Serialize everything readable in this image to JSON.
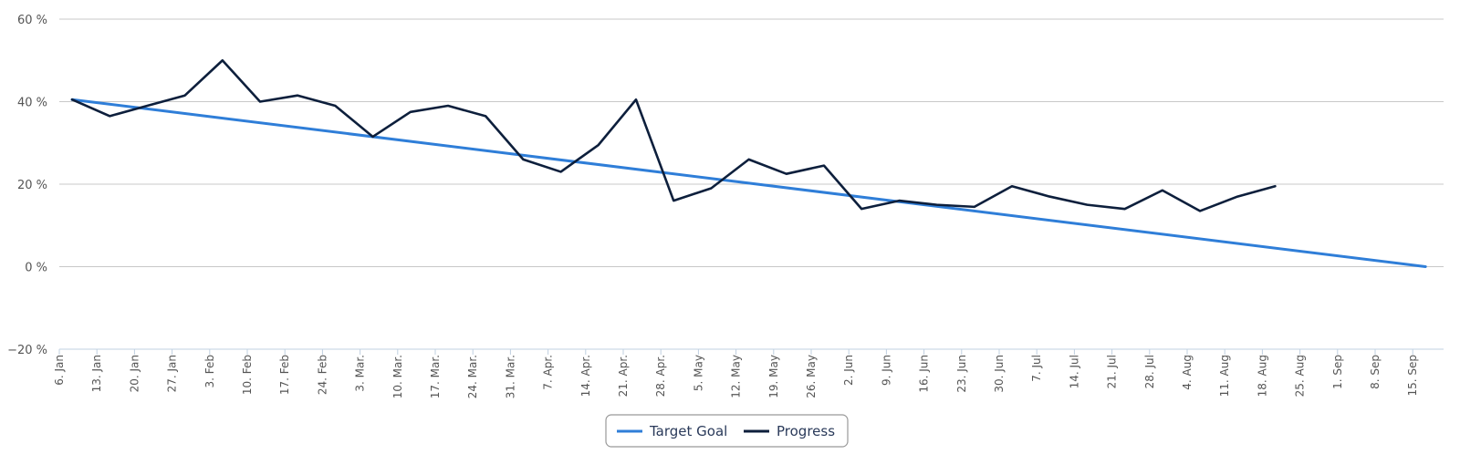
{
  "chart_data": {
    "type": "line",
    "categories": [
      "6. Jan",
      "13. Jan",
      "20. Jan",
      "27. Jan",
      "3. Feb",
      "10. Feb",
      "17. Feb",
      "24. Feb",
      "3. Mar.",
      "10. Mar.",
      "17. Mar.",
      "24. Mar.",
      "31. Mar.",
      "7. Apr.",
      "14. Apr.",
      "21. Apr.",
      "28. Apr.",
      "5. May",
      "12. May",
      "19. May",
      "26. May",
      "2. Jun",
      "9. Jun",
      "16. Jun",
      "23. Jun",
      "30. Jun",
      "7. Jul",
      "14. Jul",
      "21. Jul",
      "28. Jul",
      "4. Aug",
      "11. Aug",
      "18. Aug",
      "25. Aug",
      "1. Sep",
      "8. Sep",
      "15. Sep"
    ],
    "y_ticks": [
      60,
      40,
      20,
      0,
      -20
    ],
    "y_tick_labels": [
      "60 %",
      "40 %",
      "20 %",
      "0 %",
      "−20 %"
    ],
    "ylim": [
      -20,
      60
    ],
    "grid": true,
    "legend_position": "bottom-center",
    "series": [
      {
        "name": "Target Goal",
        "color": "#2f7ed8",
        "x": [
          "6. Jan",
          "15. Sep"
        ],
        "values": [
          40.5,
          0
        ]
      },
      {
        "name": "Progress",
        "color": "#0d1f3c",
        "x": [
          "6. Jan",
          "13. Jan",
          "20. Jan",
          "27. Jan",
          "3. Feb",
          "10. Feb",
          "17. Feb",
          "24. Feb",
          "3. Mar.",
          "10. Mar.",
          "17. Mar.",
          "24. Mar.",
          "31. Mar.",
          "7. Apr.",
          "14. Apr.",
          "21. Apr.",
          "28. Apr.",
          "5. May",
          "12. May",
          "19. May",
          "26. May",
          "2. Jun",
          "9. Jun",
          "16. Jun",
          "23. Jun",
          "30. Jun",
          "7. Jul",
          "14. Jul",
          "21. Jul",
          "28. Jul",
          "4. Aug",
          "11. Aug",
          "18. Aug"
        ],
        "values": [
          40.5,
          36.5,
          39,
          41.5,
          50,
          40,
          41.5,
          39,
          31.5,
          37.5,
          39,
          36.5,
          26,
          23,
          29.5,
          40.5,
          16,
          19,
          26,
          22.5,
          24.5,
          14,
          16,
          15,
          14.5,
          19.5,
          17,
          15,
          14,
          18.5,
          13.5,
          17,
          19.5
        ]
      }
    ]
  }
}
